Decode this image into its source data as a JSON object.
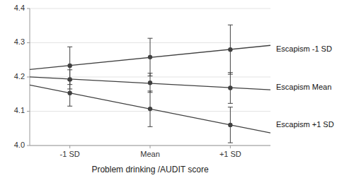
{
  "chart_data": {
    "type": "line",
    "xlabel": "Problem drinking /AUDIT score",
    "categories": [
      "-1 SD",
      "Mean",
      "+1 SD"
    ],
    "ylim": [
      4.0,
      4.4
    ],
    "yticks": [
      {
        "value": 4.0,
        "label": "4.0"
      },
      4.1,
      4.2,
      4.3,
      4.4
    ],
    "grid": true,
    "color": "#404040",
    "marker": "circle",
    "series": [
      {
        "name": "Escapism -1 SD",
        "values": [
          4.233,
          4.258,
          4.28
        ],
        "errors": [
          0.055,
          0.055,
          0.072
        ],
        "trend": [
          4.22175,
          4.29225
        ]
      },
      {
        "name": "Escapism Mean",
        "values": [
          4.193,
          4.183,
          4.168
        ],
        "errors": [
          0.028,
          0.028,
          0.045
        ],
        "trend": [
          4.200083,
          4.162583
        ]
      },
      {
        "name": "Escapism +1 SD",
        "values": [
          4.153,
          4.107,
          4.06
        ],
        "errors": [
          0.038,
          0.052,
          0.052
        ],
        "trend": [
          4.176417,
          4.036917
        ]
      }
    ]
  }
}
